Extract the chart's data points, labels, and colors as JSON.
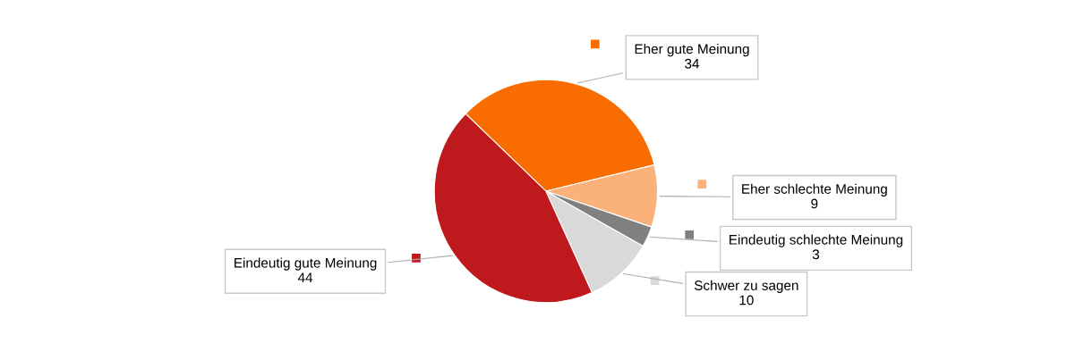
{
  "chart_data": {
    "type": "pie",
    "categories": [
      "Eher gute Meinung",
      "Eher schlechte Meinung",
      "Eindeutig schlechte Meinung",
      "Schwer zu sagen",
      "Eindeutig gute Meinung"
    ],
    "values": [
      34,
      9,
      3,
      10,
      44
    ],
    "colors": [
      "#f96d00",
      "#fbb27a",
      "#808080",
      "#d9d9d9",
      "#be1a1d"
    ],
    "data_labels": true,
    "legend": false
  }
}
